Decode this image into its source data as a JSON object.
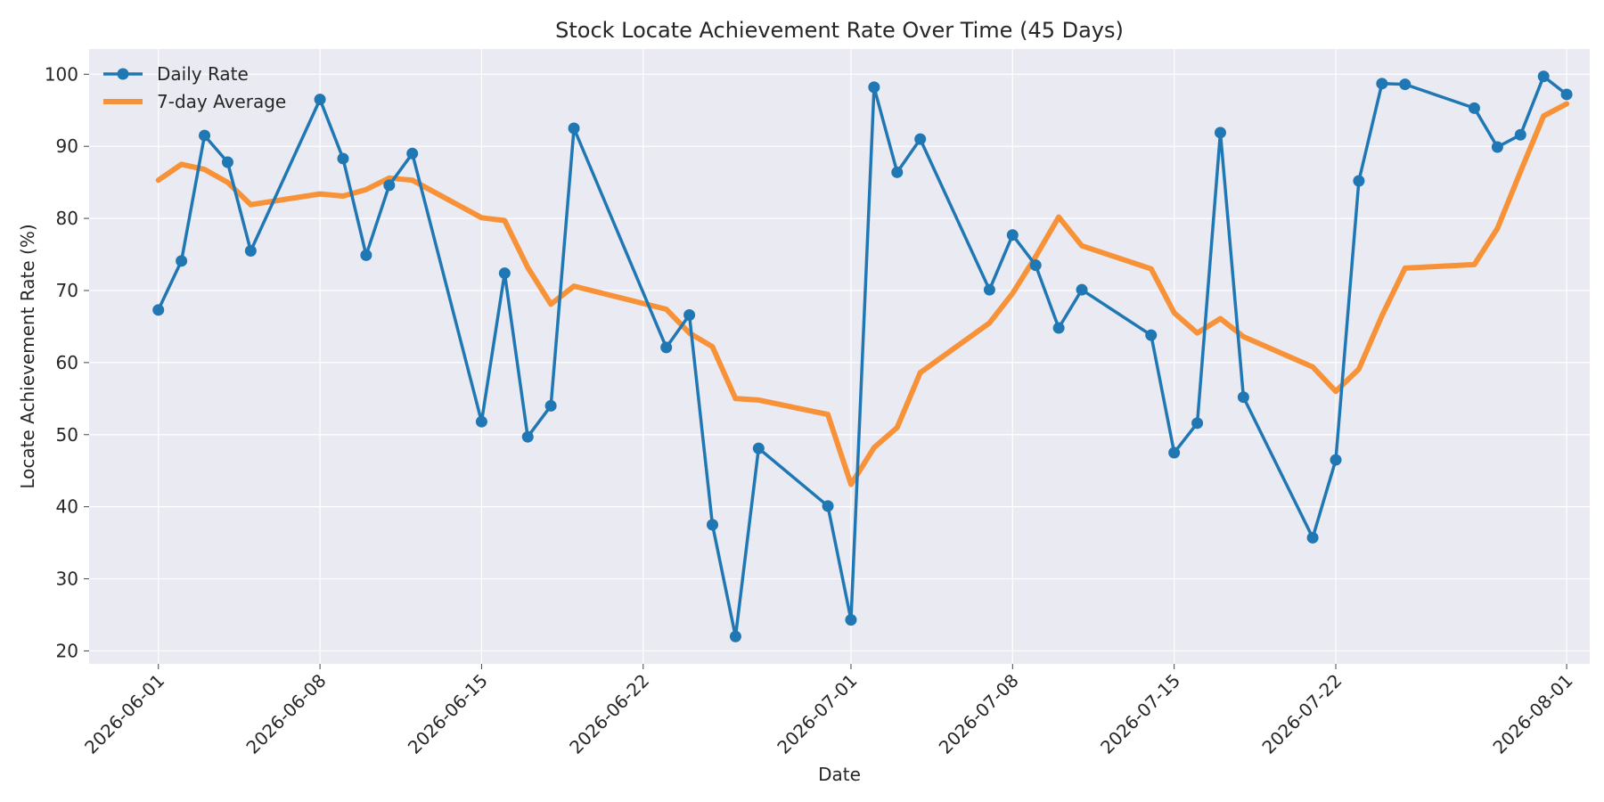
{
  "chart_data": {
    "type": "line",
    "title": "Stock Locate Achievement Rate Over Time (45 Days)",
    "xlabel": "Date",
    "ylabel": "Locate Achievement Rate (%)",
    "x_range": [
      "2026-05-29",
      "2026-08-02"
    ],
    "ylim": [
      18.2,
      103.5
    ],
    "y_ticks": [
      20,
      30,
      40,
      50,
      60,
      70,
      80,
      90,
      100
    ],
    "x_ticks": [
      "2026-06-01",
      "2026-06-08",
      "2026-06-15",
      "2026-06-22",
      "2026-07-01",
      "2026-07-08",
      "2026-07-15",
      "2026-07-22",
      "2026-08-01"
    ],
    "grid": true,
    "legend_position": "upper left",
    "colors": {
      "daily": "#1f77b4",
      "average": "#f79238",
      "plot_bg": "#eaeaf2",
      "grid": "#ffffff"
    },
    "series": [
      {
        "name": "Daily Rate",
        "style": "line-with-markers",
        "points": [
          [
            "2026-06-01",
            67.3
          ],
          [
            "2026-06-02",
            74.1
          ],
          [
            "2026-06-03",
            91.5
          ],
          [
            "2026-06-04",
            87.8
          ],
          [
            "2026-06-05",
            75.5
          ],
          [
            "2026-06-08",
            96.5
          ],
          [
            "2026-06-09",
            88.3
          ],
          [
            "2026-06-10",
            74.9
          ],
          [
            "2026-06-11",
            84.6
          ],
          [
            "2026-06-12",
            89.0
          ],
          [
            "2026-06-15",
            51.8
          ],
          [
            "2026-06-16",
            72.4
          ],
          [
            "2026-06-17",
            49.7
          ],
          [
            "2026-06-18",
            54.0
          ],
          [
            "2026-06-19",
            92.5
          ],
          [
            "2026-06-23",
            62.1
          ],
          [
            "2026-06-24",
            66.6
          ],
          [
            "2026-06-25",
            37.5
          ],
          [
            "2026-06-26",
            22.0
          ],
          [
            "2026-06-27",
            48.1
          ],
          [
            "2026-06-30",
            40.1
          ],
          [
            "2026-07-01",
            24.3
          ],
          [
            "2026-07-02",
            98.2
          ],
          [
            "2026-07-03",
            86.4
          ],
          [
            "2026-07-04",
            91.0
          ],
          [
            "2026-07-07",
            70.1
          ],
          [
            "2026-07-08",
            77.7
          ],
          [
            "2026-07-09",
            73.5
          ],
          [
            "2026-07-10",
            64.8
          ],
          [
            "2026-07-11",
            70.1
          ],
          [
            "2026-07-14",
            63.8
          ],
          [
            "2026-07-15",
            47.5
          ],
          [
            "2026-07-16",
            51.6
          ],
          [
            "2026-07-17",
            91.9
          ],
          [
            "2026-07-18",
            55.2
          ],
          [
            "2026-07-21",
            35.7
          ],
          [
            "2026-07-22",
            46.5
          ],
          [
            "2026-07-23",
            85.2
          ],
          [
            "2026-07-24",
            98.7
          ],
          [
            "2026-07-25",
            98.6
          ],
          [
            "2026-07-28",
            95.3
          ],
          [
            "2026-07-29",
            89.9
          ],
          [
            "2026-07-30",
            91.6
          ],
          [
            "2026-07-31",
            99.7
          ],
          [
            "2026-08-01",
            97.2
          ]
        ]
      },
      {
        "name": "7-day Average",
        "style": "line",
        "points": [
          [
            "2026-06-01",
            85.3
          ],
          [
            "2026-06-02",
            87.5
          ],
          [
            "2026-06-03",
            86.8
          ],
          [
            "2026-06-04",
            85.0
          ],
          [
            "2026-06-05",
            81.9
          ],
          [
            "2026-06-08",
            83.4
          ],
          [
            "2026-06-09",
            83.1
          ],
          [
            "2026-06-10",
            84.0
          ],
          [
            "2026-06-11",
            85.6
          ],
          [
            "2026-06-12",
            85.3
          ],
          [
            "2026-06-15",
            80.1
          ],
          [
            "2026-06-16",
            79.7
          ],
          [
            "2026-06-17",
            73.2
          ],
          [
            "2026-06-18",
            68.1
          ],
          [
            "2026-06-19",
            70.6
          ],
          [
            "2026-06-23",
            67.4
          ],
          [
            "2026-06-24",
            64.1
          ],
          [
            "2026-06-25",
            62.2
          ],
          [
            "2026-06-26",
            55.0
          ],
          [
            "2026-06-27",
            54.8
          ],
          [
            "2026-06-30",
            52.8
          ],
          [
            "2026-07-01",
            43.1
          ],
          [
            "2026-07-02",
            48.2
          ],
          [
            "2026-07-03",
            51.0
          ],
          [
            "2026-07-04",
            58.6
          ],
          [
            "2026-07-07",
            65.5
          ],
          [
            "2026-07-08",
            69.6
          ],
          [
            "2026-07-09",
            74.7
          ],
          [
            "2026-07-10",
            80.2
          ],
          [
            "2026-07-11",
            76.2
          ],
          [
            "2026-07-14",
            73.0
          ],
          [
            "2026-07-15",
            66.9
          ],
          [
            "2026-07-16",
            64.1
          ],
          [
            "2026-07-17",
            66.1
          ],
          [
            "2026-07-18",
            63.6
          ],
          [
            "2026-07-21",
            59.4
          ],
          [
            "2026-07-22",
            56.0
          ],
          [
            "2026-07-23",
            59.1
          ],
          [
            "2026-07-24",
            66.5
          ],
          [
            "2026-07-25",
            73.1
          ],
          [
            "2026-07-28",
            73.6
          ],
          [
            "2026-07-29",
            78.6
          ],
          [
            "2026-07-30",
            86.5
          ],
          [
            "2026-07-31",
            94.2
          ],
          [
            "2026-08-01",
            95.9
          ]
        ]
      }
    ]
  }
}
